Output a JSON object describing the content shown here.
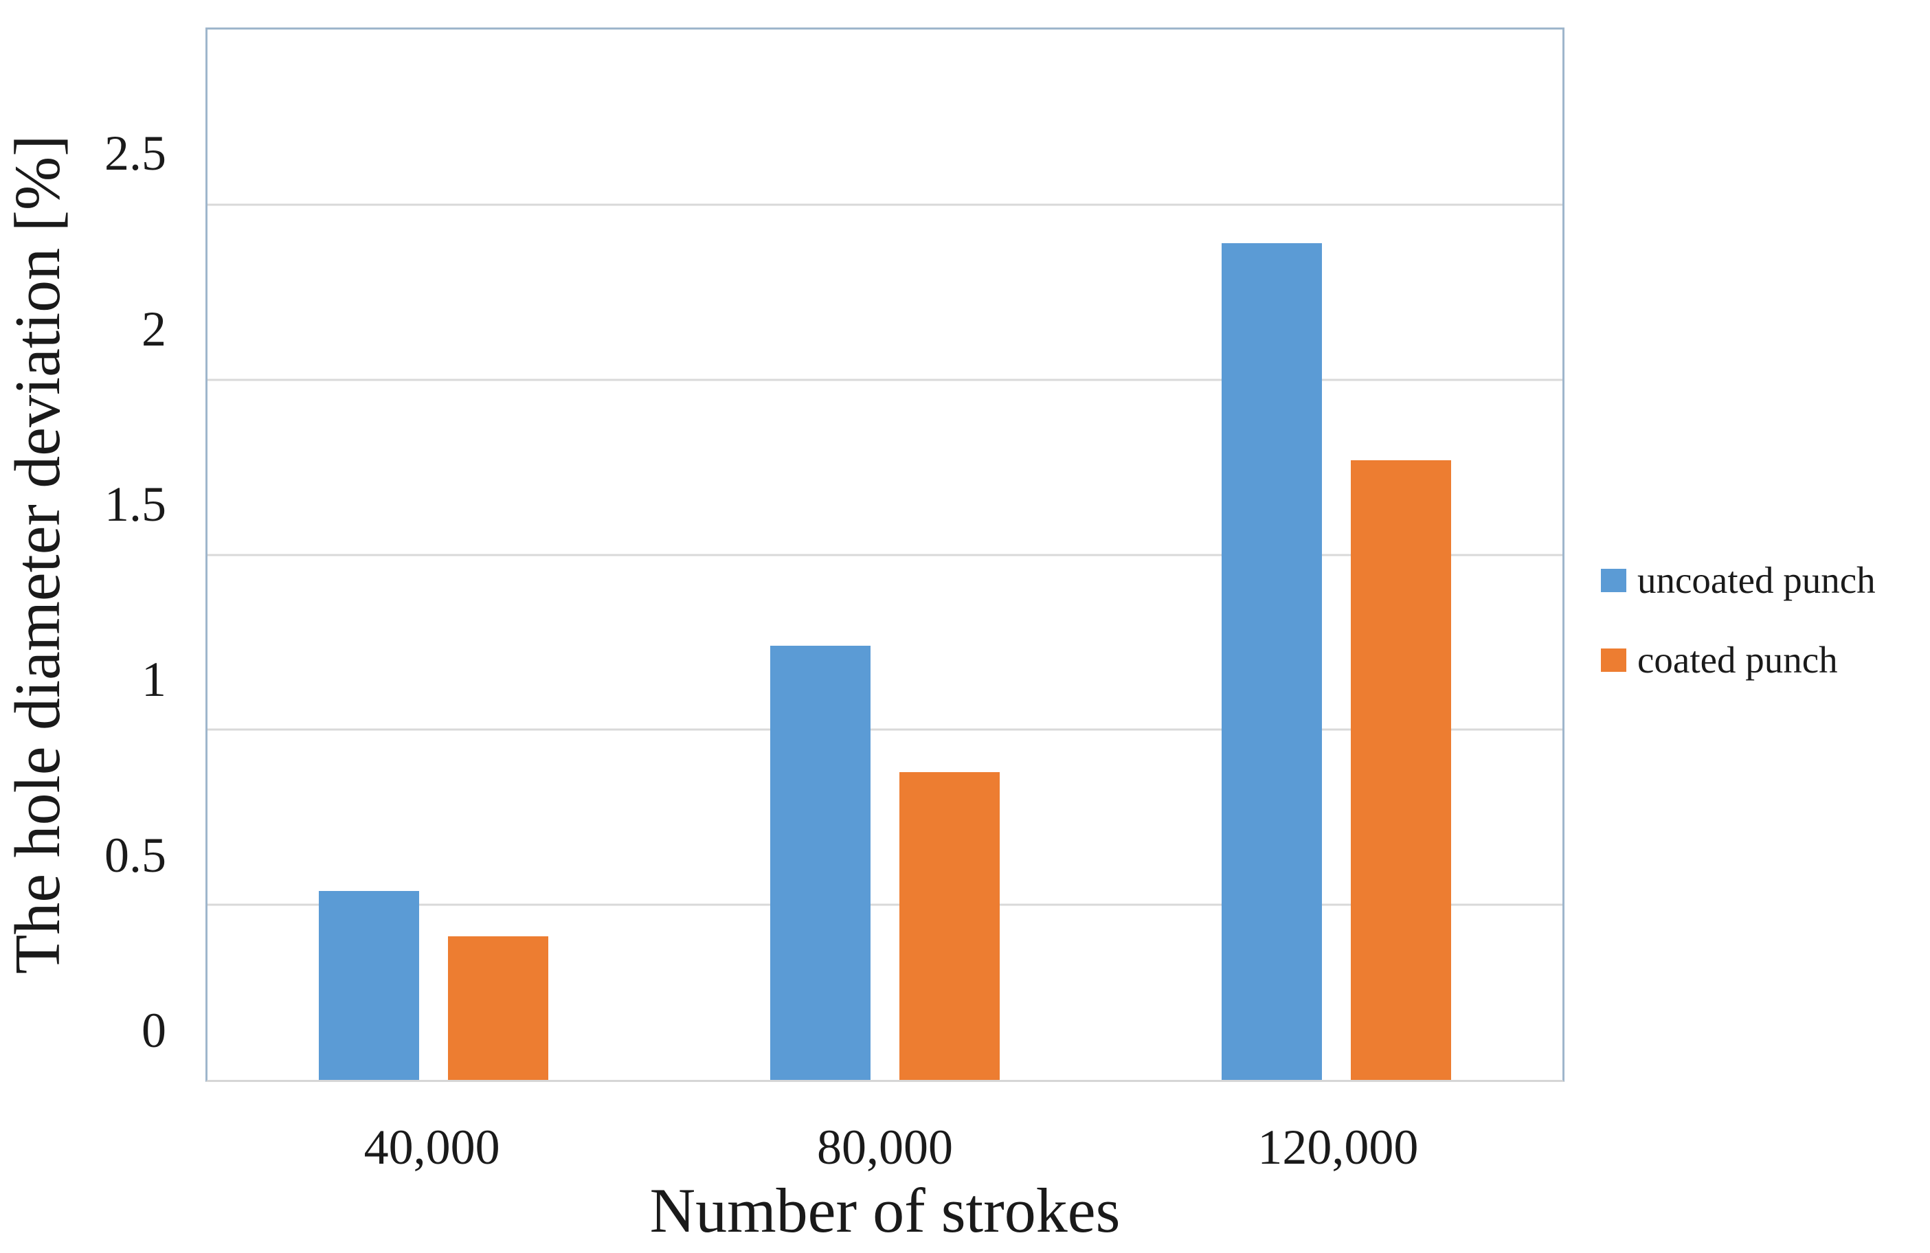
{
  "chart_data": {
    "type": "bar",
    "title": "",
    "xlabel": "Number of strokes",
    "ylabel": "The hole diameter deviation [%]",
    "categories": [
      "40,000",
      "80,000",
      "120,000"
    ],
    "series": [
      {
        "name": "uncoated punch",
        "color": "#5B9BD5",
        "values": [
          0.54,
          1.24,
          2.39
        ]
      },
      {
        "name": "coated punch",
        "color": "#ED7D31",
        "values": [
          0.41,
          0.88,
          1.77
        ]
      }
    ],
    "ylim": [
      0,
      3
    ],
    "yticks": [
      0,
      0.5,
      1,
      1.5,
      2,
      2.5,
      3
    ],
    "grid": "horizontal",
    "legend_position": "right"
  },
  "colors": {
    "gridline": "#D9D9D9",
    "plot_border": "#9FB6CC",
    "axis_line": "#D6D6D6",
    "text": "#1A1A1A",
    "background": "#FFFFFF"
  }
}
